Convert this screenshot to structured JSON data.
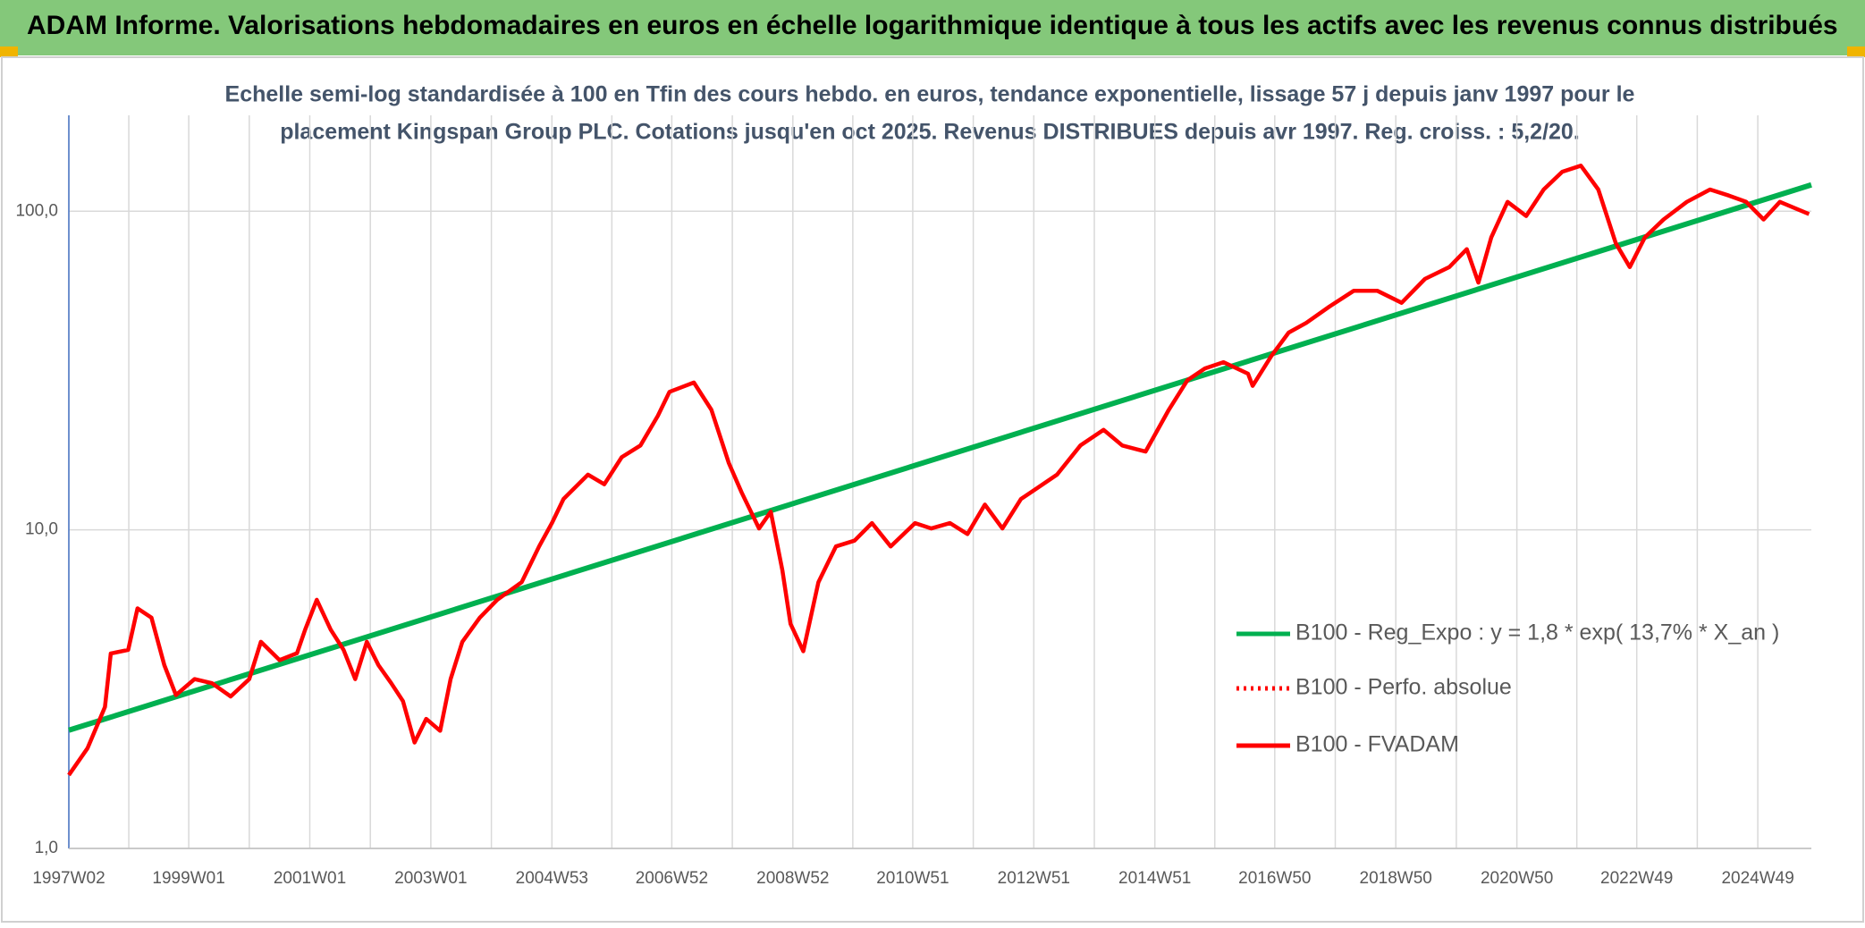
{
  "chart_data": {
    "type": "line",
    "title": "ADAM Informe. Valorisations hebdomadaires en euros en échelle logarithmique identique à tous les actifs avec les revenus connus distribués",
    "subtitle": [
      "Echelle semi-log standardisée à 100 en Tfin des cours hebdo. en euros, tendance exponentielle, lissage 57 j depuis janv 1997 pour le",
      "placement Kingspan Group PLC. Cotations jusqu'en oct 2025. Revenus DISTRIBUES depuis avr 1997. Reg. croiss. : 5,2/20."
    ],
    "log_scale": true,
    "grid": true,
    "legend": "right",
    "xlim": [
      "1997W02",
      "2025W43"
    ],
    "xticks": [
      "1997W02",
      "1999W01",
      "2001W01",
      "2003W01",
      "2004W53",
      "2006W52",
      "2008W52",
      "2010W51",
      "2012W51",
      "2014W51",
      "2016W50",
      "2018W50",
      "2020W50",
      "2022W49",
      "2024W49"
    ],
    "ylim": [
      1,
      200
    ],
    "yticks": [
      {
        "value": 1,
        "label": "1,0"
      },
      {
        "value": 10,
        "label": "10,0"
      },
      {
        "value": 100,
        "label": "100,0"
      }
    ],
    "series": [
      {
        "name": "B100 - Reg_Expo : y = 1,8 * exp( 13,7% *  X_an )",
        "color": "#00b050",
        "style": "solid",
        "x": [
          "1997W02",
          "2025W43"
        ],
        "values": [
          2.35,
          121
        ]
      },
      {
        "name": "B100 - Perfo. absolue",
        "color": "#ff0000",
        "style": "dotted",
        "x": [],
        "values": []
      },
      {
        "name": "B100 - FVADAM",
        "color": "#ff0000",
        "style": "solid",
        "x": [
          "1997W02",
          "1997W18",
          "1997W33",
          "1997W38",
          "1998W01",
          "1998W09",
          "1998W21",
          "1998W32",
          "1998W42",
          "1999W06",
          "1999W21",
          "1999W37",
          "2000W01",
          "2000W11",
          "2000W27",
          "2000W42",
          "2000W49",
          "2001W07",
          "2001W19",
          "2001W30",
          "2001W40",
          "2001W50",
          "2002W08",
          "2002W19",
          "2002W29",
          "2002W39",
          "2002W49",
          "2003W09",
          "2003W18",
          "2003W28",
          "2003W43",
          "2004W06",
          "2004W27",
          "2004W42",
          "2005W01",
          "2005W11",
          "2005W32",
          "2005W46",
          "2006W09",
          "2006W25",
          "2006W40",
          "2006W50",
          "2007W19",
          "2007W34",
          "2007W49",
          "2008W08",
          "2008W23",
          "2008W33",
          "2008W43",
          "2008W50",
          "2009W09",
          "2009W22",
          "2009W37",
          "2010W01",
          "2010W16",
          "2010W32",
          "2011W01",
          "2011W15",
          "2011W31",
          "2011W46",
          "2012W09",
          "2012W24",
          "2012W40",
          "2013W03",
          "2013W19",
          "2013W39",
          "2014W07",
          "2014W23",
          "2014W43",
          "2015W11",
          "2015W27",
          "2015W42",
          "2016W06",
          "2016W27",
          "2016W31",
          "2016W47",
          "2017W10",
          "2017W25",
          "2017W45",
          "2018W14",
          "2018W34",
          "2019W03",
          "2019W23",
          "2019W44",
          "2020W07",
          "2020W17",
          "2020W28",
          "2020W42",
          "2021W06",
          "2021W21",
          "2021W37",
          "2022W01",
          "2022W16",
          "2022W31",
          "2022W43",
          "2023W04",
          "2023W20",
          "2023W40",
          "2024W08",
          "2024W24",
          "2024W39",
          "2025W02",
          "2025W16",
          "2025W41"
        ],
        "values": [
          1.7,
          2.06,
          2.78,
          4.09,
          4.2,
          5.67,
          5.3,
          3.76,
          3.03,
          3.4,
          3.3,
          3.0,
          3.4,
          4.45,
          3.9,
          4.1,
          4.86,
          6.03,
          4.86,
          4.2,
          3.4,
          4.45,
          3.76,
          3.3,
          2.9,
          2.15,
          2.55,
          2.34,
          3.4,
          4.45,
          5.3,
          6.03,
          6.85,
          8.87,
          10.5,
          12.5,
          14.9,
          13.9,
          16.9,
          18.4,
          22.8,
          27.1,
          29.0,
          23.8,
          16.2,
          13.1,
          10.1,
          11.4,
          7.46,
          5.07,
          4.16,
          6.85,
          8.87,
          9.25,
          10.5,
          8.87,
          10.5,
          10.1,
          10.5,
          9.7,
          12.0,
          10.1,
          12.5,
          13.6,
          14.9,
          18.4,
          20.6,
          18.4,
          17.6,
          23.8,
          29.5,
          32.1,
          33.6,
          30.9,
          28.3,
          35.1,
          41.6,
          44.6,
          50.2,
          56.3,
          56.3,
          51.6,
          61.3,
          66.8,
          76.0,
          59.7,
          82.8,
          107,
          96.6,
          117,
          133,
          139,
          117,
          79.3,
          66.8,
          82.8,
          94.2,
          107,
          117,
          112,
          107,
          94.2,
          107,
          98
        ]
      }
    ]
  }
}
